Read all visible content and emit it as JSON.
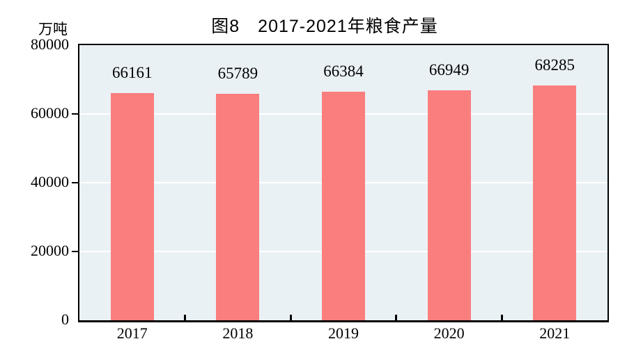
{
  "chart_data": {
    "type": "bar",
    "title": "图8　2017-2021年粮食产量",
    "ylabel": "万吨",
    "xlabel": "",
    "categories": [
      "2017",
      "2018",
      "2019",
      "2020",
      "2021"
    ],
    "values": [
      66161,
      65789,
      66384,
      66949,
      68285
    ],
    "ylim": [
      0,
      80000
    ],
    "yticks": [
      0,
      20000,
      40000,
      60000,
      80000
    ],
    "grid": "horizontal",
    "legend_position": "none",
    "bar_color": "#FB7E7E",
    "plot_background": "#EAF1F5",
    "gridline_color": "#FFFFFF",
    "axis_color": "#000000",
    "text_color": "#000000"
  }
}
